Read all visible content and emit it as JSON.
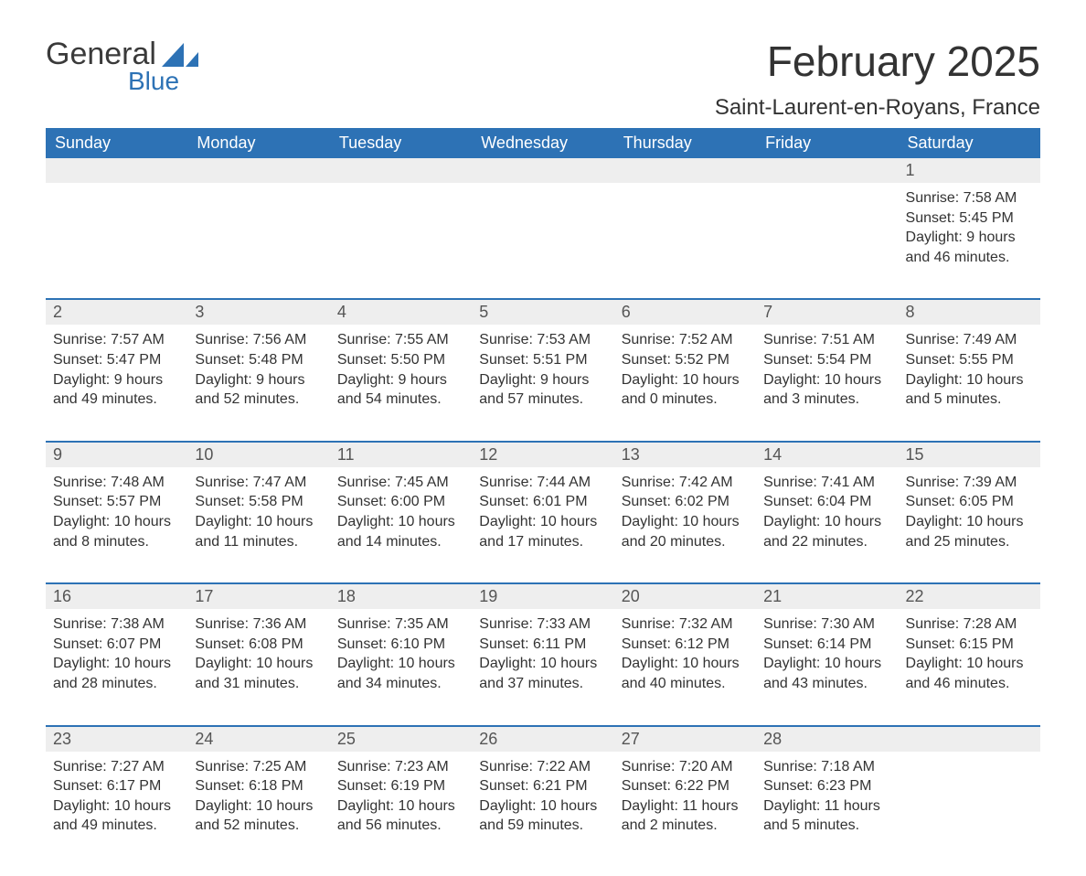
{
  "brand": {
    "word1": "General",
    "word2": "Blue",
    "flag_color": "#2d72b5"
  },
  "title": "February 2025",
  "location": "Saint-Laurent-en-Royans, France",
  "colors": {
    "header_bg": "#2d72b5",
    "header_text": "#ffffff",
    "daynum_bg": "#eeeeee",
    "week_border": "#2d72b5",
    "body_text": "#333333"
  },
  "fonts": {
    "title_pt": 46,
    "location_pt": 24,
    "weekday_pt": 18,
    "daynum_pt": 18,
    "body_pt": 16
  },
  "weekdays": [
    "Sunday",
    "Monday",
    "Tuesday",
    "Wednesday",
    "Thursday",
    "Friday",
    "Saturday"
  ],
  "weeks": [
    [
      null,
      null,
      null,
      null,
      null,
      null,
      {
        "n": "1",
        "sunrise": "Sunrise: 7:58 AM",
        "sunset": "Sunset: 5:45 PM",
        "day1": "Daylight: 9 hours",
        "day2": "and 46 minutes."
      }
    ],
    [
      {
        "n": "2",
        "sunrise": "Sunrise: 7:57 AM",
        "sunset": "Sunset: 5:47 PM",
        "day1": "Daylight: 9 hours",
        "day2": "and 49 minutes."
      },
      {
        "n": "3",
        "sunrise": "Sunrise: 7:56 AM",
        "sunset": "Sunset: 5:48 PM",
        "day1": "Daylight: 9 hours",
        "day2": "and 52 minutes."
      },
      {
        "n": "4",
        "sunrise": "Sunrise: 7:55 AM",
        "sunset": "Sunset: 5:50 PM",
        "day1": "Daylight: 9 hours",
        "day2": "and 54 minutes."
      },
      {
        "n": "5",
        "sunrise": "Sunrise: 7:53 AM",
        "sunset": "Sunset: 5:51 PM",
        "day1": "Daylight: 9 hours",
        "day2": "and 57 minutes."
      },
      {
        "n": "6",
        "sunrise": "Sunrise: 7:52 AM",
        "sunset": "Sunset: 5:52 PM",
        "day1": "Daylight: 10 hours",
        "day2": "and 0 minutes."
      },
      {
        "n": "7",
        "sunrise": "Sunrise: 7:51 AM",
        "sunset": "Sunset: 5:54 PM",
        "day1": "Daylight: 10 hours",
        "day2": "and 3 minutes."
      },
      {
        "n": "8",
        "sunrise": "Sunrise: 7:49 AM",
        "sunset": "Sunset: 5:55 PM",
        "day1": "Daylight: 10 hours",
        "day2": "and 5 minutes."
      }
    ],
    [
      {
        "n": "9",
        "sunrise": "Sunrise: 7:48 AM",
        "sunset": "Sunset: 5:57 PM",
        "day1": "Daylight: 10 hours",
        "day2": "and 8 minutes."
      },
      {
        "n": "10",
        "sunrise": "Sunrise: 7:47 AM",
        "sunset": "Sunset: 5:58 PM",
        "day1": "Daylight: 10 hours",
        "day2": "and 11 minutes."
      },
      {
        "n": "11",
        "sunrise": "Sunrise: 7:45 AM",
        "sunset": "Sunset: 6:00 PM",
        "day1": "Daylight: 10 hours",
        "day2": "and 14 minutes."
      },
      {
        "n": "12",
        "sunrise": "Sunrise: 7:44 AM",
        "sunset": "Sunset: 6:01 PM",
        "day1": "Daylight: 10 hours",
        "day2": "and 17 minutes."
      },
      {
        "n": "13",
        "sunrise": "Sunrise: 7:42 AM",
        "sunset": "Sunset: 6:02 PM",
        "day1": "Daylight: 10 hours",
        "day2": "and 20 minutes."
      },
      {
        "n": "14",
        "sunrise": "Sunrise: 7:41 AM",
        "sunset": "Sunset: 6:04 PM",
        "day1": "Daylight: 10 hours",
        "day2": "and 22 minutes."
      },
      {
        "n": "15",
        "sunrise": "Sunrise: 7:39 AM",
        "sunset": "Sunset: 6:05 PM",
        "day1": "Daylight: 10 hours",
        "day2": "and 25 minutes."
      }
    ],
    [
      {
        "n": "16",
        "sunrise": "Sunrise: 7:38 AM",
        "sunset": "Sunset: 6:07 PM",
        "day1": "Daylight: 10 hours",
        "day2": "and 28 minutes."
      },
      {
        "n": "17",
        "sunrise": "Sunrise: 7:36 AM",
        "sunset": "Sunset: 6:08 PM",
        "day1": "Daylight: 10 hours",
        "day2": "and 31 minutes."
      },
      {
        "n": "18",
        "sunrise": "Sunrise: 7:35 AM",
        "sunset": "Sunset: 6:10 PM",
        "day1": "Daylight: 10 hours",
        "day2": "and 34 minutes."
      },
      {
        "n": "19",
        "sunrise": "Sunrise: 7:33 AM",
        "sunset": "Sunset: 6:11 PM",
        "day1": "Daylight: 10 hours",
        "day2": "and 37 minutes."
      },
      {
        "n": "20",
        "sunrise": "Sunrise: 7:32 AM",
        "sunset": "Sunset: 6:12 PM",
        "day1": "Daylight: 10 hours",
        "day2": "and 40 minutes."
      },
      {
        "n": "21",
        "sunrise": "Sunrise: 7:30 AM",
        "sunset": "Sunset: 6:14 PM",
        "day1": "Daylight: 10 hours",
        "day2": "and 43 minutes."
      },
      {
        "n": "22",
        "sunrise": "Sunrise: 7:28 AM",
        "sunset": "Sunset: 6:15 PM",
        "day1": "Daylight: 10 hours",
        "day2": "and 46 minutes."
      }
    ],
    [
      {
        "n": "23",
        "sunrise": "Sunrise: 7:27 AM",
        "sunset": "Sunset: 6:17 PM",
        "day1": "Daylight: 10 hours",
        "day2": "and 49 minutes."
      },
      {
        "n": "24",
        "sunrise": "Sunrise: 7:25 AM",
        "sunset": "Sunset: 6:18 PM",
        "day1": "Daylight: 10 hours",
        "day2": "and 52 minutes."
      },
      {
        "n": "25",
        "sunrise": "Sunrise: 7:23 AM",
        "sunset": "Sunset: 6:19 PM",
        "day1": "Daylight: 10 hours",
        "day2": "and 56 minutes."
      },
      {
        "n": "26",
        "sunrise": "Sunrise: 7:22 AM",
        "sunset": "Sunset: 6:21 PM",
        "day1": "Daylight: 10 hours",
        "day2": "and 59 minutes."
      },
      {
        "n": "27",
        "sunrise": "Sunrise: 7:20 AM",
        "sunset": "Sunset: 6:22 PM",
        "day1": "Daylight: 11 hours",
        "day2": "and 2 minutes."
      },
      {
        "n": "28",
        "sunrise": "Sunrise: 7:18 AM",
        "sunset": "Sunset: 6:23 PM",
        "day1": "Daylight: 11 hours",
        "day2": "and 5 minutes."
      },
      null
    ]
  ]
}
